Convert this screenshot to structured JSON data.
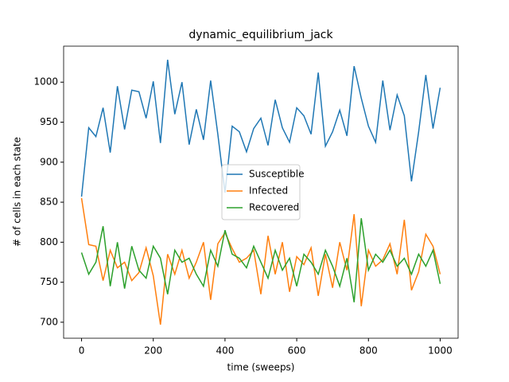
{
  "chart_data": {
    "type": "line",
    "title": "dynamic_equilibrium_jack",
    "xlabel": "time (sweeps)",
    "ylabel": "# of cells in each state",
    "x": [
      0,
      20,
      40,
      60,
      80,
      100,
      120,
      140,
      160,
      180,
      200,
      220,
      240,
      260,
      280,
      300,
      320,
      340,
      360,
      380,
      400,
      420,
      440,
      460,
      480,
      500,
      520,
      540,
      560,
      580,
      600,
      620,
      640,
      660,
      680,
      700,
      720,
      740,
      760,
      780,
      800,
      820,
      840,
      860,
      880,
      900,
      920,
      940,
      960,
      980,
      1000
    ],
    "series": [
      {
        "name": "Susceptible",
        "color": "#1f77b4",
        "values": [
          857,
          943,
          932,
          968,
          912,
          995,
          941,
          990,
          988,
          955,
          1001,
          924,
          1028,
          960,
          1000,
          922,
          966,
          928,
          1002,
          935,
          862,
          945,
          938,
          913,
          942,
          955,
          921,
          978,
          943,
          925,
          968,
          958,
          935,
          1012,
          920,
          938,
          965,
          933,
          1020,
          980,
          945,
          925,
          1002,
          940,
          984,
          958,
          876,
          938,
          1009,
          942,
          993
        ]
      },
      {
        "name": "Infected",
        "color": "#ff7f0e",
        "values": [
          855,
          797,
          795,
          752,
          790,
          768,
          775,
          752,
          762,
          793,
          758,
          697,
          785,
          760,
          790,
          755,
          775,
          800,
          728,
          798,
          812,
          792,
          775,
          780,
          790,
          735,
          808,
          760,
          800,
          738,
          782,
          772,
          793,
          733,
          785,
          743,
          800,
          765,
          835,
          720,
          790,
          770,
          778,
          798,
          760,
          828,
          740,
          763,
          810,
          795,
          760
        ]
      },
      {
        "name": "Recovered",
        "color": "#2ca02c",
        "values": [
          787,
          760,
          775,
          820,
          745,
          800,
          742,
          795,
          765,
          755,
          795,
          780,
          735,
          790,
          775,
          780,
          760,
          745,
          790,
          770,
          815,
          785,
          780,
          768,
          795,
          775,
          755,
          790,
          765,
          780,
          745,
          785,
          775,
          760,
          790,
          770,
          745,
          780,
          725,
          830,
          765,
          785,
          775,
          790,
          770,
          780,
          760,
          785,
          770,
          790,
          748
        ]
      }
    ],
    "xlim": [
      -50,
      1050
    ],
    "ylim": [
      680,
      1045
    ],
    "xticks": [
      0,
      200,
      400,
      600,
      800,
      1000
    ],
    "yticks": [
      700,
      750,
      800,
      850,
      900,
      950,
      1000
    ],
    "legend": "center"
  }
}
